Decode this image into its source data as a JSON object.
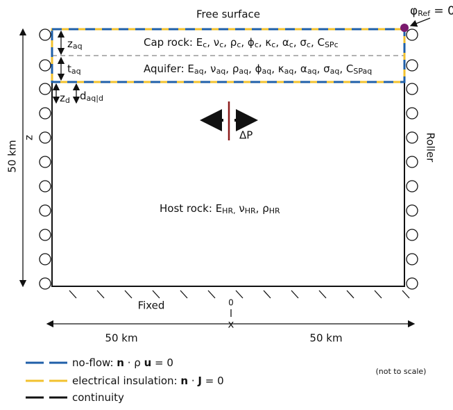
{
  "top_label": "Free surface",
  "reference": [
    {
      "t": "φ"
    },
    {
      "t": "Ref",
      "sub": true
    },
    {
      "t": " = 0"
    }
  ],
  "layers": [
    [
      {
        "t": "Cap rock: E"
      },
      {
        "t": "c",
        "sub": true
      },
      {
        "t": ", ν"
      },
      {
        "t": "c",
        "sub": true
      },
      {
        "t": ", ρ"
      },
      {
        "t": "c",
        "sub": true
      },
      {
        "t": ", ϕ"
      },
      {
        "t": "c",
        "sub": true
      },
      {
        "t": ", κ"
      },
      {
        "t": "c",
        "sub": true
      },
      {
        "t": ", α"
      },
      {
        "t": "c",
        "sub": true
      },
      {
        "t": ", σ"
      },
      {
        "t": "c",
        "sub": true
      },
      {
        "t": ", C"
      },
      {
        "t": "SPc",
        "sub": true
      }
    ],
    [
      {
        "t": "Aquifer: E"
      },
      {
        "t": "aq",
        "sub": true
      },
      {
        "t": ", ν"
      },
      {
        "t": "aq",
        "sub": true
      },
      {
        "t": ", ρ"
      },
      {
        "t": "aq",
        "sub": true
      },
      {
        "t": ", ϕ"
      },
      {
        "t": "aq",
        "sub": true
      },
      {
        "t": ", κ"
      },
      {
        "t": "aq",
        "sub": true
      },
      {
        "t": ", α"
      },
      {
        "t": "aq",
        "sub": true
      },
      {
        "t": ", σ"
      },
      {
        "t": "aq",
        "sub": true
      },
      {
        "t": ", C"
      },
      {
        "t": "SPaq",
        "sub": true
      }
    ],
    [
      {
        "t": "Host rock: E"
      },
      {
        "t": "HR,",
        "sub": true
      },
      {
        "t": " ν"
      },
      {
        "t": "HR",
        "sub": true
      },
      {
        "t": ", ρ"
      },
      {
        "t": "HR",
        "sub": true
      }
    ]
  ],
  "dims": [
    [
      {
        "t": "z"
      },
      {
        "t": "aq",
        "sub": true
      }
    ],
    [
      {
        "t": "t"
      },
      {
        "t": "aq",
        "sub": true
      }
    ],
    [
      {
        "t": "z"
      },
      {
        "t": "d",
        "sub": true
      }
    ],
    [
      {
        "t": "d"
      },
      {
        "t": "aq|d",
        "sub": true
      }
    ]
  ],
  "source": "ΔP",
  "height_label": "50 km",
  "z_axis": "z",
  "right_boundary": "Roller",
  "bottom_boundary": "Fixed",
  "origin": "0",
  "x_axis": "x",
  "x_left": "50 km",
  "x_right": "50 km",
  "legend": [
    [
      {
        "t": "no-flow: "
      },
      {
        "t": "n",
        "bold": true
      },
      {
        "t": " ·  ρ "
      },
      {
        "t": "u",
        "bold": true
      },
      {
        "t": " = 0"
      }
    ],
    [
      {
        "t": "electrical insulation: "
      },
      {
        "t": "n",
        "bold": true
      },
      {
        "t": " · "
      },
      {
        "t": "J",
        "bold": true
      },
      {
        "t": " = 0"
      }
    ],
    [
      {
        "t": "continuity"
      }
    ]
  ],
  "note": "(not to scale)"
}
